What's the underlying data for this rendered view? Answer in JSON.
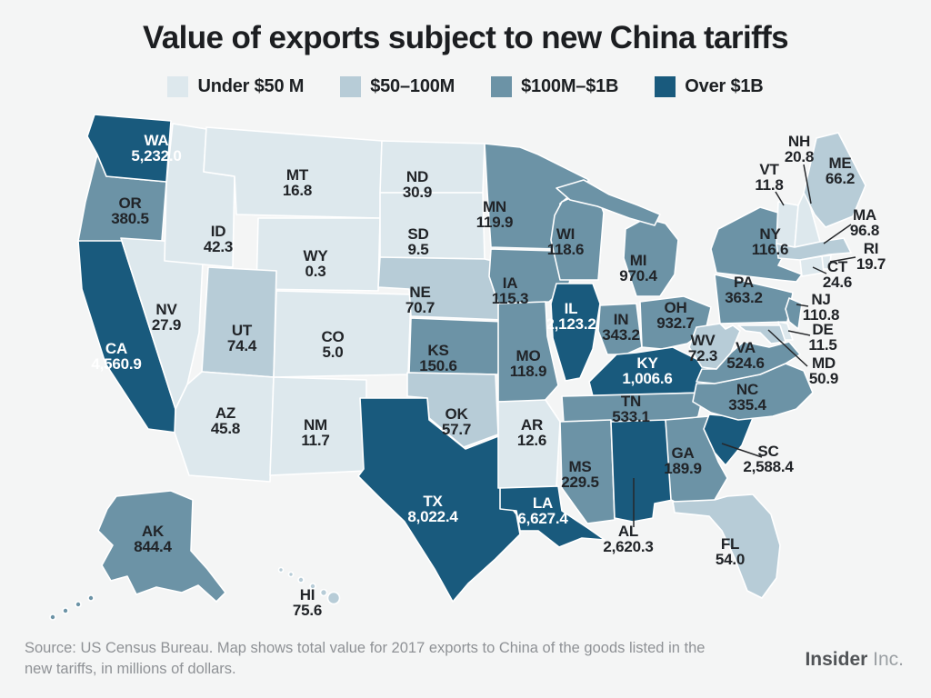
{
  "title": "Value of exports subject to new China tariffs",
  "legend": {
    "items": [
      {
        "label": "Under $50 M",
        "category": "under_50m"
      },
      {
        "label": "$50–100M",
        "category": "m50_100m"
      },
      {
        "label": "$100M–$1B",
        "category": "m100m_1b"
      },
      {
        "label": "Over $1B",
        "category": "over_1b"
      }
    ]
  },
  "colors": {
    "background": "#f4f5f5",
    "state_border": "#ffffff",
    "label_dark": "#212428",
    "label_light": "#ffffff",
    "leader_line": "#26282b",
    "categories": {
      "under_50m": "#dde8ed",
      "m50_100m": "#b7ccd7",
      "m100m_1b": "#6c93a6",
      "over_1b": "#195a7d"
    }
  },
  "footer": {
    "source_text": "Source: US Census Bureau. Map shows total value for 2017 exports to China of the goods listed in the new tariffs, in millions of dollars.",
    "brand_name": "Insider",
    "brand_suffix": "Inc."
  },
  "chart_data": {
    "type": "heatmap",
    "subtype": "us_state_choropleth",
    "title": "Value of exports subject to new China tariffs",
    "units": "millions of US dollars (2017 exports to China of goods listed in the new tariffs)",
    "legend_bins": [
      "Under $50 M",
      "$50–100M",
      "$100M–$1B",
      "Over $1B"
    ],
    "states": [
      {
        "abbr": "CA",
        "value": 4560.9,
        "label": "4,560.9",
        "category": "over_1b"
      },
      {
        "abbr": "OR",
        "value": 380.5,
        "label": "380.5",
        "category": "m100m_1b"
      },
      {
        "abbr": "WA",
        "value": 5232.0,
        "label": "5,232.0",
        "category": "over_1b"
      },
      {
        "abbr": "NV",
        "value": 27.9,
        "label": "27.9",
        "category": "under_50m"
      },
      {
        "abbr": "ID",
        "value": 42.3,
        "label": "42.3",
        "category": "under_50m"
      },
      {
        "abbr": "MT",
        "value": 16.8,
        "label": "16.8",
        "category": "under_50m"
      },
      {
        "abbr": "WY",
        "value": 0.3,
        "label": "0.3",
        "category": "under_50m"
      },
      {
        "abbr": "UT",
        "value": 74.4,
        "label": "74.4",
        "category": "m50_100m"
      },
      {
        "abbr": "CO",
        "value": 5.0,
        "label": "5.0",
        "category": "under_50m"
      },
      {
        "abbr": "AZ",
        "value": 45.8,
        "label": "45.8",
        "category": "under_50m"
      },
      {
        "abbr": "NM",
        "value": 11.7,
        "label": "11.7",
        "category": "under_50m"
      },
      {
        "abbr": "ND",
        "value": 30.9,
        "label": "30.9",
        "category": "under_50m"
      },
      {
        "abbr": "SD",
        "value": 9.5,
        "label": "9.5",
        "category": "under_50m"
      },
      {
        "abbr": "NE",
        "value": 70.7,
        "label": "70.7",
        "category": "m50_100m"
      },
      {
        "abbr": "KS",
        "value": 150.6,
        "label": "150.6",
        "category": "m100m_1b"
      },
      {
        "abbr": "OK",
        "value": 57.7,
        "label": "57.7",
        "category": "m50_100m"
      },
      {
        "abbr": "TX",
        "value": 8022.4,
        "label": "8,022.4",
        "category": "over_1b"
      },
      {
        "abbr": "MN",
        "value": 119.9,
        "label": "119.9",
        "category": "m100m_1b"
      },
      {
        "abbr": "IA",
        "value": 115.3,
        "label": "115.3",
        "category": "m100m_1b"
      },
      {
        "abbr": "MO",
        "value": 118.9,
        "label": "118.9",
        "category": "m100m_1b"
      },
      {
        "abbr": "AR",
        "value": 12.6,
        "label": "12.6",
        "category": "under_50m"
      },
      {
        "abbr": "LA",
        "value": 6627.4,
        "label": "6,627.4",
        "category": "over_1b"
      },
      {
        "abbr": "WI",
        "value": 118.6,
        "label": "118.6",
        "category": "m100m_1b"
      },
      {
        "abbr": "IL",
        "value": 2123.2,
        "label": "2,123.2",
        "category": "over_1b"
      },
      {
        "abbr": "MI",
        "value": 970.4,
        "label": "970.4",
        "category": "m100m_1b"
      },
      {
        "abbr": "IN",
        "value": 343.2,
        "label": "343.2",
        "category": "m100m_1b"
      },
      {
        "abbr": "OH",
        "value": 932.7,
        "label": "932.7",
        "category": "m100m_1b"
      },
      {
        "abbr": "KY",
        "value": 1006.6,
        "label": "1,006.6",
        "category": "over_1b"
      },
      {
        "abbr": "TN",
        "value": 533.1,
        "label": "533.1",
        "category": "m100m_1b"
      },
      {
        "abbr": "MS",
        "value": 229.5,
        "label": "229.5",
        "category": "m100m_1b"
      },
      {
        "abbr": "AL",
        "value": 2620.3,
        "label": "2,620.3",
        "category": "over_1b"
      },
      {
        "abbr": "GA",
        "value": 189.9,
        "label": "189.9",
        "category": "m100m_1b"
      },
      {
        "abbr": "FL",
        "value": 54.0,
        "label": "54.0",
        "category": "m50_100m"
      },
      {
        "abbr": "SC",
        "value": 2588.4,
        "label": "2,588.4",
        "category": "over_1b"
      },
      {
        "abbr": "NC",
        "value": 335.4,
        "label": "335.4",
        "category": "m100m_1b"
      },
      {
        "abbr": "VA",
        "value": 524.6,
        "label": "524.6",
        "category": "m100m_1b"
      },
      {
        "abbr": "WV",
        "value": 72.3,
        "label": "72.3",
        "category": "m50_100m"
      },
      {
        "abbr": "PA",
        "value": 363.2,
        "label": "363.2",
        "category": "m100m_1b"
      },
      {
        "abbr": "NY",
        "value": 116.6,
        "label": "116.6",
        "category": "m100m_1b"
      },
      {
        "abbr": "NJ",
        "value": 110.8,
        "label": "110.8",
        "category": "m100m_1b"
      },
      {
        "abbr": "DE",
        "value": 11.5,
        "label": "11.5",
        "category": "under_50m"
      },
      {
        "abbr": "MD",
        "value": 50.9,
        "label": "50.9",
        "category": "m50_100m"
      },
      {
        "abbr": "VT",
        "value": 11.8,
        "label": "11.8",
        "category": "under_50m"
      },
      {
        "abbr": "NH",
        "value": 20.8,
        "label": "20.8",
        "category": "under_50m"
      },
      {
        "abbr": "ME",
        "value": 66.2,
        "label": "66.2",
        "category": "m50_100m"
      },
      {
        "abbr": "MA",
        "value": 96.8,
        "label": "96.8",
        "category": "m50_100m"
      },
      {
        "abbr": "RI",
        "value": 19.7,
        "label": "19.7",
        "category": "under_50m"
      },
      {
        "abbr": "CT",
        "value": 24.6,
        "label": "24.6",
        "category": "under_50m"
      },
      {
        "abbr": "AK",
        "value": 844.4,
        "label": "844.4",
        "category": "m100m_1b"
      },
      {
        "abbr": "HI",
        "value": 75.6,
        "label": "75.6",
        "category": "m50_100m"
      }
    ]
  }
}
